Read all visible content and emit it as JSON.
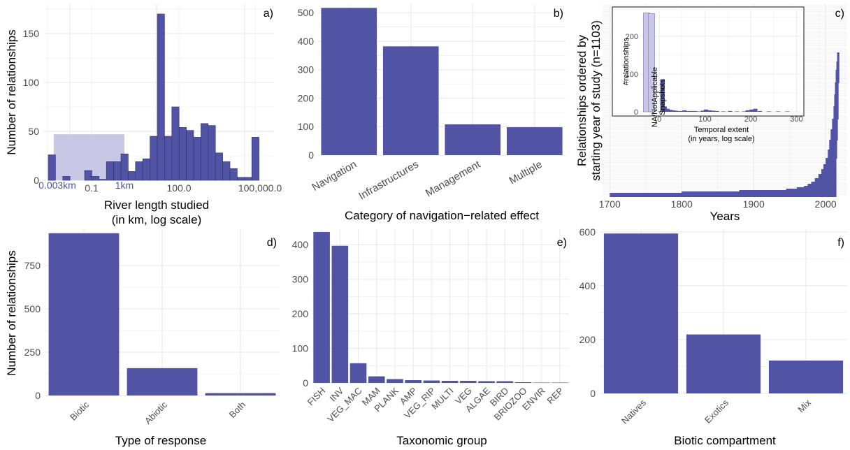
{
  "colors": {
    "bar": "#5154a4",
    "bar_edge": "#2d2f6e",
    "shade": "#c8c8e6",
    "grid": "#ebebeb",
    "axis_text": "#4d4d4d",
    "blue_text": "#4f54a6"
  },
  "chart_data": [
    {
      "id": "a",
      "type": "bar",
      "panel_label": "a)",
      "xlabel": "River length studied",
      "xlabel2": "(in km, log scale)",
      "ylabel": "Number of relationships",
      "ylim": [
        0,
        180
      ],
      "yticks": [
        0,
        50,
        100,
        150
      ],
      "x_ticks": [
        "0.1",
        "100.0",
        "100,000.0"
      ],
      "x_ticks_blue": [
        "0.003km",
        "1km"
      ],
      "shaded_region": {
        "x_from": "0.003km",
        "x_to": "1km",
        "y": 47
      },
      "values": [
        26,
        0,
        4,
        0,
        0,
        10,
        4,
        1,
        19,
        19,
        27,
        9,
        19,
        22,
        45,
        170,
        45,
        75,
        54,
        51,
        44,
        58,
        56,
        28,
        19,
        12,
        3,
        3,
        44
      ]
    },
    {
      "id": "b",
      "type": "bar",
      "panel_label": "b)",
      "xlabel": "Category of navigation−related effect",
      "ylabel": "",
      "ylim": [
        0,
        530
      ],
      "yticks": [
        0,
        100,
        200,
        300,
        400,
        500
      ],
      "categories": [
        "Navigation",
        "Infrastructures",
        "Management",
        "Multiple"
      ],
      "values": [
        517,
        382,
        108,
        98
      ]
    },
    {
      "id": "c",
      "type": "bar",
      "panel_label": "c)",
      "xlabel": "Years",
      "ylabel": "Relationships ordered by",
      "ylabel2": "starting year of study (n=1103)",
      "xlim": [
        1690,
        2030
      ],
      "xticks": [
        1700,
        1800,
        1900,
        2000
      ],
      "relationship_count": 1103,
      "inset": {
        "type": "bar",
        "xlabel": "Temporal extent",
        "xlabel2": "(in years, log scale)",
        "ylabel": "#relationships",
        "rotated_labels": [
          "NA/NotApplicable",
          "Snapshots"
        ],
        "xlim": [
          -40,
          310
        ],
        "xticks": [
          0,
          100,
          200,
          300
        ],
        "ylim": [
          0,
          270
        ],
        "yticks": [
          0,
          100,
          200
        ],
        "shaded_bars": [
          {
            "x": -28,
            "value": 262
          },
          {
            "x": -17,
            "value": 260
          }
        ],
        "bars": [
          {
            "x": 2,
            "value": 1
          },
          {
            "x": 7,
            "value": 86
          },
          {
            "x": 12,
            "value": 14
          },
          {
            "x": 18,
            "value": 8
          },
          {
            "x": 24,
            "value": 5
          },
          {
            "x": 30,
            "value": 4
          },
          {
            "x": 36,
            "value": 3
          },
          {
            "x": 42,
            "value": 2
          },
          {
            "x": 48,
            "value": 2
          },
          {
            "x": 55,
            "value": 4
          },
          {
            "x": 62,
            "value": 2
          },
          {
            "x": 70,
            "value": 2
          },
          {
            "x": 78,
            "value": 2
          },
          {
            "x": 85,
            "value": 1
          },
          {
            "x": 95,
            "value": 3
          },
          {
            "x": 102,
            "value": 6
          },
          {
            "x": 110,
            "value": 4
          },
          {
            "x": 118,
            "value": 3
          },
          {
            "x": 126,
            "value": 2
          },
          {
            "x": 140,
            "value": 1
          },
          {
            "x": 155,
            "value": 2
          },
          {
            "x": 170,
            "value": 1
          },
          {
            "x": 185,
            "value": 1
          },
          {
            "x": 193,
            "value": 4
          },
          {
            "x": 202,
            "value": 6
          },
          {
            "x": 210,
            "value": 8
          },
          {
            "x": 220,
            "value": 2
          },
          {
            "x": 240,
            "value": 1
          },
          {
            "x": 260,
            "value": 1
          },
          {
            "x": 280,
            "value": 1
          }
        ]
      }
    },
    {
      "id": "d",
      "type": "bar",
      "panel_label": "d)",
      "xlabel": "Type of response",
      "ylabel": "Number of relationships",
      "ylim": [
        0,
        960
      ],
      "yticks": [
        0,
        250,
        500,
        750
      ],
      "categories": [
        "Biotic",
        "Abiotic",
        "Both"
      ],
      "values": [
        937,
        158,
        14
      ]
    },
    {
      "id": "e",
      "type": "bar",
      "panel_label": "e)",
      "xlabel": "Taxonomic group",
      "ylabel": "",
      "ylim": [
        0,
        445
      ],
      "yticks": [
        0,
        100,
        200,
        300,
        400
      ],
      "categories": [
        "FISH",
        "INV",
        "VEG_MAC",
        "MAM",
        "PLANK",
        "AMP",
        "VEG_RIP",
        "MULTI",
        "VEG",
        "ALGAE",
        "BIRD",
        "BRIOZOO",
        "ENVIR",
        "REP"
      ],
      "values": [
        437,
        397,
        57,
        19,
        11,
        8,
        7,
        6,
        6,
        5,
        5,
        2,
        1,
        1
      ]
    },
    {
      "id": "f",
      "type": "bar",
      "panel_label": "f)",
      "xlabel": "Biotic compartment",
      "ylabel": "",
      "ylim": [
        0,
        610
      ],
      "yticks": [
        0,
        200,
        400,
        600
      ],
      "categories": [
        "Natives",
        "Exotics",
        "Mix"
      ],
      "values": [
        594,
        219,
        122
      ]
    }
  ]
}
